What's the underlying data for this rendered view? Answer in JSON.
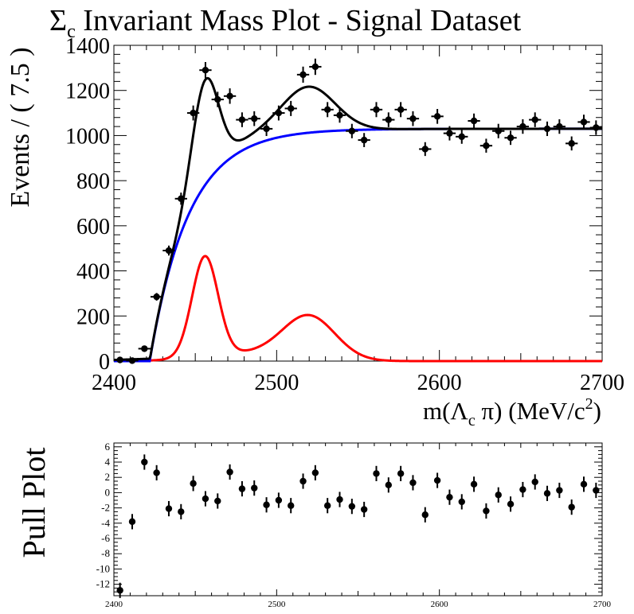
{
  "chart_data": [
    {
      "type": "scatter",
      "title": "Σc Invariant Mass Plot - Signal Dataset",
      "title_main": "Σ",
      "title_sub": "c",
      "title_rest": " Invariant Mass Plot - Signal Dataset",
      "xlabel": "m(Λc π) (MeV/c2)",
      "xlabel_parts": {
        "a": "m(Λ",
        "sub": "c",
        "b": " π) (MeV/c",
        "sup": "2",
        "c": ")"
      },
      "ylabel": "Events / ( 7.5 )",
      "xlim": [
        2400,
        2700
      ],
      "ylim": [
        0,
        1400
      ],
      "xticks": [
        2400,
        2500,
        2600,
        2700
      ],
      "yticks": [
        0,
        200,
        400,
        600,
        800,
        1000,
        1200,
        1400
      ],
      "grid": false,
      "bin_width": 7.5,
      "series": [
        {
          "kind": "data points with errors",
          "x": [
            2403.75,
            2411.25,
            2418.75,
            2426.25,
            2433.75,
            2441.25,
            2448.75,
            2456.25,
            2463.75,
            2471.25,
            2478.75,
            2486.25,
            2493.75,
            2501.25,
            2508.75,
            2516.25,
            2523.75,
            2531.25,
            2538.75,
            2546.25,
            2553.75,
            2561.25,
            2568.75,
            2576.25,
            2583.75,
            2591.25,
            2598.75,
            2606.25,
            2613.75,
            2621.25,
            2628.75,
            2636.25,
            2643.75,
            2651.25,
            2658.75,
            2666.25,
            2673.75,
            2681.25,
            2688.75,
            2696.25
          ],
          "y": [
            5,
            2,
            55,
            285,
            490,
            720,
            1100,
            1290,
            1160,
            1175,
            1070,
            1075,
            1030,
            1100,
            1120,
            1270,
            1305,
            1115,
            1090,
            1020,
            980,
            1115,
            1070,
            1115,
            1075,
            940,
            1085,
            1010,
            995,
            1065,
            955,
            1020,
            990,
            1040,
            1070,
            1030,
            1040,
            965,
            1060,
            1035
          ]
        },
        {
          "kind": "total fit",
          "color": "#000000"
        },
        {
          "kind": "background",
          "color": "#0000ff"
        },
        {
          "kind": "signal",
          "color": "#ff0000"
        }
      ]
    },
    {
      "type": "scatter",
      "ylabel": "Pull Plot",
      "xlim": [
        2400,
        2700
      ],
      "ylim": [
        -13.5,
        6.5
      ],
      "xticks": [
        2400,
        2500,
        2600,
        2700
      ],
      "yticks": [
        6,
        4,
        2,
        0,
        -2,
        -4,
        -6,
        -8,
        -10,
        -12
      ],
      "series": [
        {
          "kind": "pulls",
          "x": [
            2403.75,
            2411.25,
            2418.75,
            2426.25,
            2433.75,
            2441.25,
            2448.75,
            2456.25,
            2463.75,
            2471.25,
            2478.75,
            2486.25,
            2493.75,
            2501.25,
            2508.75,
            2516.25,
            2523.75,
            2531.25,
            2538.75,
            2546.25,
            2553.75,
            2561.25,
            2568.75,
            2576.25,
            2583.75,
            2591.25,
            2598.75,
            2606.25,
            2613.75,
            2621.25,
            2628.75,
            2636.25,
            2643.75,
            2651.25,
            2658.75,
            2666.25,
            2673.75,
            2681.25,
            2688.75,
            2696.25
          ],
          "y": [
            -12.8,
            -3.8,
            4.0,
            2.6,
            -2.1,
            -2.5,
            1.2,
            -0.8,
            -1.1,
            2.7,
            0.5,
            0.6,
            -1.6,
            -1.0,
            -1.7,
            1.5,
            2.6,
            -1.7,
            -0.9,
            -1.8,
            -2.2,
            2.5,
            1.0,
            2.5,
            1.3,
            -2.9,
            1.6,
            -0.6,
            -1.2,
            1.1,
            -2.4,
            -0.3,
            -1.5,
            0.4,
            1.4,
            -0.1,
            0.3,
            -1.9,
            1.1,
            0.3
          ]
        }
      ]
    }
  ]
}
